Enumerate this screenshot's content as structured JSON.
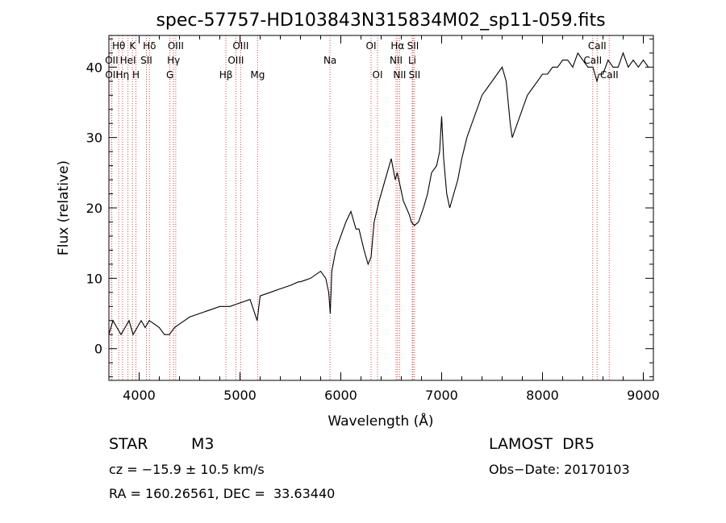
{
  "chart_data": {
    "type": "line",
    "title": "spec-57757-HD103843N315834M02_sp11-059.fits",
    "xlabel": "Wavelength (Å)",
    "ylabel": "Flux (relative)",
    "xlim": [
      3700,
      9100
    ],
    "ylim": [
      -4.5,
      44.5
    ],
    "x_ticks": [
      4000,
      5000,
      6000,
      7000,
      8000,
      9000
    ],
    "y_ticks": [
      0,
      10,
      20,
      30,
      40
    ],
    "grid": false,
    "line_color": "#000000",
    "line_marker_color": "#d24a4a",
    "series": [
      {
        "x": [
          3700,
          3740,
          3780,
          3820,
          3860,
          3900,
          3940,
          3980,
          4020,
          4060,
          4100,
          4150,
          4200,
          4250,
          4300,
          4350,
          4400,
          4450,
          4500,
          4600,
          4700,
          4800,
          4860,
          4900,
          5000,
          5100,
          5170,
          5200,
          5300,
          5400,
          5500,
          5580,
          5600,
          5700,
          5800,
          5850,
          5880,
          5895,
          5910,
          5950,
          6000,
          6050,
          6100,
          6150,
          6180,
          6230,
          6270,
          6300,
          6330,
          6380,
          6420,
          6460,
          6500,
          6540,
          6560,
          6590,
          6620,
          6650,
          6680,
          6700,
          6730,
          6770,
          6820,
          6860,
          6900,
          6950,
          6980,
          7000,
          7020,
          7050,
          7080,
          7120,
          7160,
          7200,
          7250,
          7300,
          7350,
          7400,
          7450,
          7500,
          7550,
          7600,
          7640,
          7660,
          7680,
          7700,
          7750,
          7800,
          7850,
          7900,
          7950,
          8000,
          8050,
          8100,
          8150,
          8200,
          8250,
          8300,
          8350,
          8400,
          8450,
          8500,
          8540,
          8560,
          8600,
          8650,
          8700,
          8750,
          8800,
          8850,
          8900,
          8950,
          9000,
          9050
        ],
        "y": [
          2,
          4,
          3,
          2,
          3,
          4,
          2,
          3,
          4,
          3,
          4,
          3.5,
          3,
          2,
          2,
          3,
          3.5,
          4,
          4.5,
          5,
          5.5,
          6,
          6,
          6,
          6.5,
          7,
          4,
          7.5,
          8,
          8.5,
          9,
          9.5,
          9.5,
          10,
          11,
          10,
          8,
          5,
          11,
          14,
          16,
          18,
          19.5,
          17,
          17,
          14,
          12,
          13,
          18,
          21,
          23,
          25,
          27,
          24,
          25,
          23,
          21,
          20,
          19,
          18,
          17.5,
          18,
          20,
          22,
          25,
          26,
          28,
          33,
          27,
          22,
          20,
          22,
          24,
          27,
          30,
          32,
          34,
          36,
          37,
          38,
          39,
          40,
          38,
          35,
          32,
          30,
          32,
          34,
          36,
          37,
          38,
          39,
          39,
          40,
          40,
          41,
          41,
          40,
          42,
          41,
          40,
          40,
          38,
          39,
          39,
          41,
          40,
          40,
          42,
          40,
          41,
          40,
          41,
          40
        ]
      }
    ],
    "spectral_lines": [
      {
        "label": "Hθ",
        "wl": 3797,
        "row": 1
      },
      {
        "label": "OII",
        "wl": 3727,
        "row": 2
      },
      {
        "label": "OII",
        "wl": 3729,
        "row": 3
      },
      {
        "label": "Hη",
        "wl": 3835,
        "row": 3
      },
      {
        "label": "K",
        "wl": 3934,
        "row": 1
      },
      {
        "label": "HeI",
        "wl": 3889,
        "row": 2
      },
      {
        "label": "H",
        "wl": 3968,
        "row": 3
      },
      {
        "label": "SII",
        "wl": 4072,
        "row": 2
      },
      {
        "label": "Hδ",
        "wl": 4102,
        "row": 1
      },
      {
        "label": "OIII",
        "wl": 4363,
        "row": 1
      },
      {
        "label": "Hγ",
        "wl": 4341,
        "row": 2
      },
      {
        "label": "G",
        "wl": 4305,
        "row": 3
      },
      {
        "label": "Hβ",
        "wl": 4861,
        "row": 3
      },
      {
        "label": "OIII",
        "wl": 5007,
        "row": 1
      },
      {
        "label": "OIII",
        "wl": 4959,
        "row": 2
      },
      {
        "label": "Mg",
        "wl": 5175,
        "row": 3
      },
      {
        "label": "Na",
        "wl": 5893,
        "row": 2
      },
      {
        "label": "OI",
        "wl": 6300,
        "row": 1
      },
      {
        "label": "OI",
        "wl": 6364,
        "row": 3
      },
      {
        "label": "Hα",
        "wl": 6563,
        "row": 1
      },
      {
        "label": "NII",
        "wl": 6548,
        "row": 2
      },
      {
        "label": "NII",
        "wl": 6583,
        "row": 3
      },
      {
        "label": "SII",
        "wl": 6716,
        "row": 1
      },
      {
        "label": "Li",
        "wl": 6708,
        "row": 2
      },
      {
        "label": "SII",
        "wl": 6731,
        "row": 3
      },
      {
        "label": "CaII",
        "wl": 8542,
        "row": 1
      },
      {
        "label": "CaII",
        "wl": 8498,
        "row": 2
      },
      {
        "label": "CaII",
        "wl": 8662,
        "row": 3
      }
    ]
  },
  "info": {
    "object_class": "STAR",
    "subclass": "M3",
    "survey": "LAMOST  DR5",
    "cz": "cz = −15.9 ± 10.5 km/s",
    "obs_date": "Obs−Date: 20170103",
    "coords": "RA = 160.26561, DEC =  33.63440"
  }
}
